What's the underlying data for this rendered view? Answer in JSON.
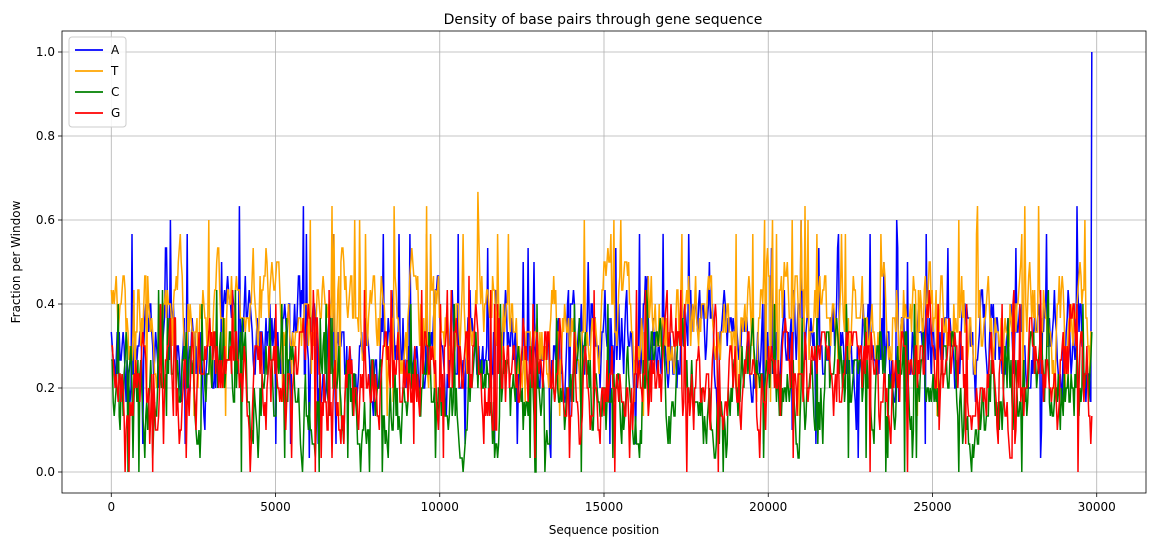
{
  "chart_data": {
    "type": "line",
    "title": "Density of base pairs through gene sequence",
    "xlabel": "Sequence position",
    "ylabel": "Fraction per Window",
    "xlim": [
      -1500,
      31500
    ],
    "ylim": [
      -0.05,
      1.05
    ],
    "xticks": [
      0,
      5000,
      10000,
      15000,
      20000,
      25000,
      30000
    ],
    "yticks": [
      0.0,
      0.2,
      0.4,
      0.6,
      0.8,
      1.0
    ],
    "xtick_labels": [
      "0",
      "5000",
      "10000",
      "15000",
      "20000",
      "25000",
      "30000"
    ],
    "ytick_labels": [
      "0.0",
      "0.2",
      "0.4",
      "0.6",
      "0.8",
      "1.0"
    ],
    "grid": true,
    "legend_position": "top-left",
    "window_size": 30,
    "x_step": 30,
    "x_start": 0,
    "x_end": 29850,
    "series": [
      {
        "name": "A",
        "color": "#0000ff",
        "typical_range": [
          0.1,
          0.5
        ],
        "peaks": [
          [
            1800,
            0.6
          ],
          [
            3900,
            0.633
          ],
          [
            5850,
            0.633
          ],
          [
            16800,
            0.567
          ],
          [
            21000,
            0.6
          ],
          [
            23900,
            0.6
          ],
          [
            29400,
            0.633
          ],
          [
            29850,
            1.0
          ]
        ],
        "min": 0.0
      },
      {
        "name": "T",
        "color": "#ffa500",
        "typical_range": [
          0.2,
          0.55
        ],
        "peaks": [
          [
            8600,
            0.633
          ],
          [
            9600,
            0.633
          ],
          [
            11150,
            0.667
          ],
          [
            19900,
            0.6
          ],
          [
            21200,
            0.6
          ],
          [
            25800,
            0.6
          ],
          [
            27800,
            0.633
          ]
        ],
        "min": 0.033
      },
      {
        "name": "C",
        "color": "#008000",
        "typical_range": [
          0.05,
          0.35
        ],
        "peaks": [
          [
            200,
            0.4
          ],
          [
            5200,
            0.4
          ],
          [
            20200,
            0.4
          ]
        ],
        "min": 0.0
      },
      {
        "name": "G",
        "color": "#ff0000",
        "typical_range": [
          0.07,
          0.37
        ],
        "peaks": [
          [
            10900,
            0.467
          ],
          [
            14700,
            0.433
          ],
          [
            24900,
            0.433
          ]
        ],
        "min": 0.0
      }
    ]
  }
}
